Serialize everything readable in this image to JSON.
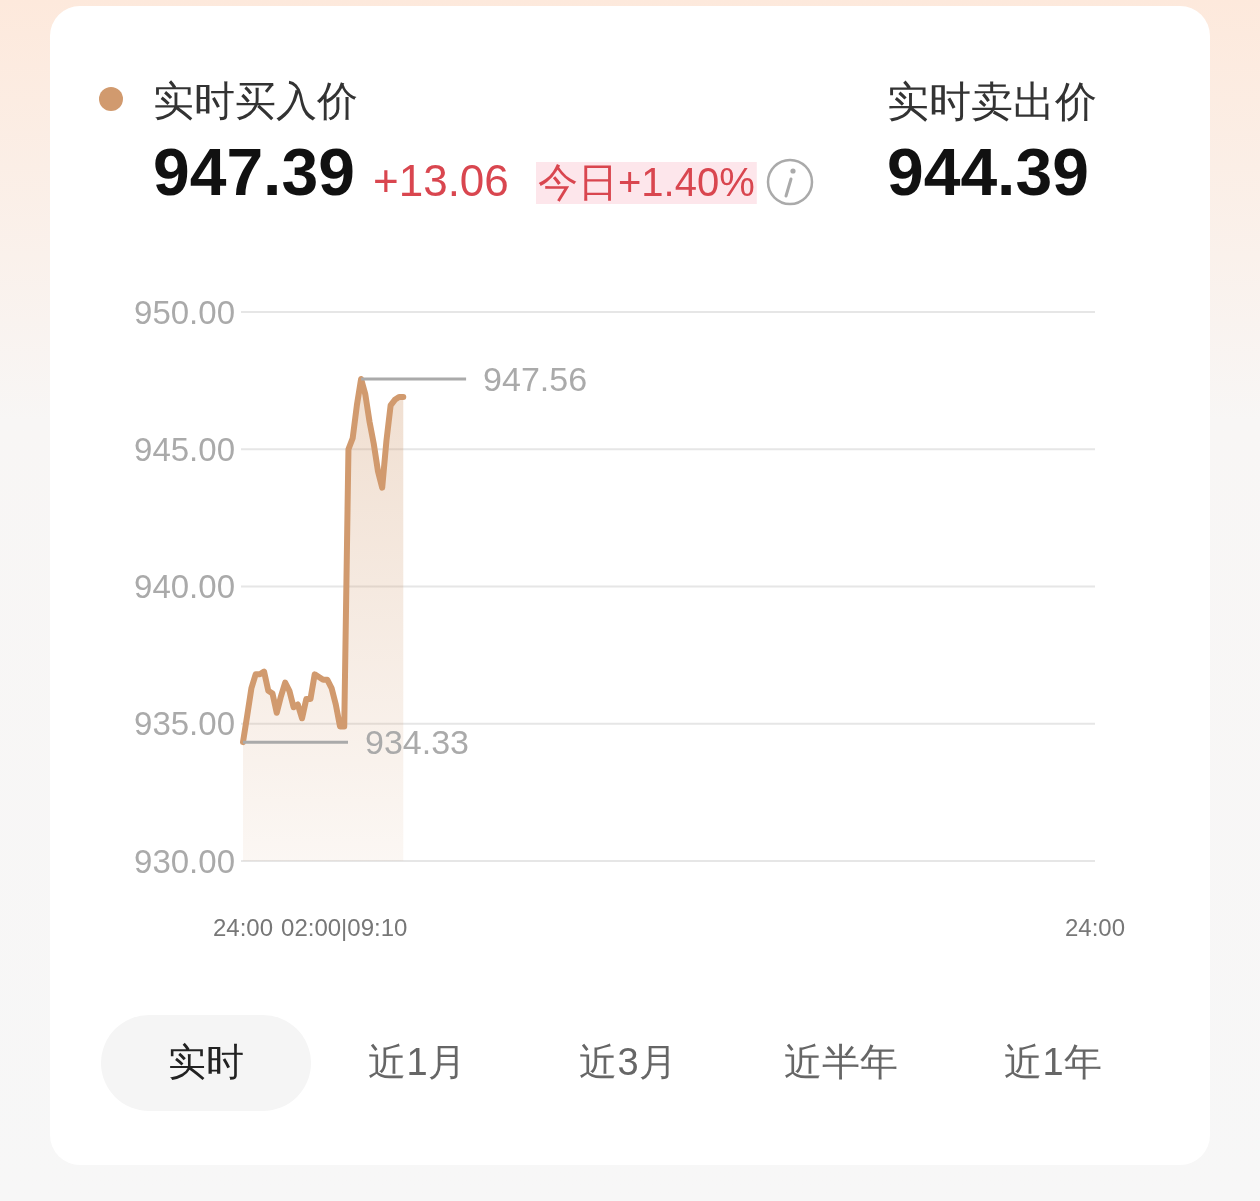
{
  "chart_data": {
    "type": "area",
    "categories": [
      "24:00",
      null,
      null,
      null,
      null,
      null,
      null,
      null,
      null,
      null,
      null,
      null,
      null,
      null,
      null,
      null,
      null,
      null,
      null,
      null,
      null,
      null,
      null,
      null,
      "02:00|09:10",
      null,
      null,
      null,
      null,
      null,
      null,
      null,
      null,
      null,
      null,
      null,
      null,
      null,
      null,
      null,
      null,
      null,
      null,
      null,
      null,
      null,
      null,
      null,
      null,
      null,
      null,
      null,
      null,
      null,
      null,
      null,
      null,
      null,
      null,
      null,
      null,
      null,
      null,
      null,
      null,
      null,
      null,
      null,
      null,
      null,
      null,
      null,
      null,
      null,
      null,
      null,
      null,
      null,
      null,
      null,
      null,
      null,
      null,
      null,
      null,
      null,
      null,
      null,
      null,
      null,
      null,
      null,
      null,
      null,
      null,
      null,
      null,
      null,
      null,
      null,
      null,
      null,
      null,
      null,
      null,
      null,
      null,
      null,
      null,
      null,
      null,
      null,
      null,
      null,
      null,
      null,
      null,
      null,
      null,
      null,
      null,
      null,
      null,
      null,
      null,
      null,
      null,
      null,
      null,
      null,
      null,
      null,
      null,
      null,
      null,
      null,
      null,
      null,
      null,
      null,
      null,
      null,
      null,
      null,
      null,
      null,
      null,
      null,
      null,
      null,
      null,
      null,
      null,
      null,
      null,
      null,
      null,
      null,
      null,
      null,
      null,
      null,
      null,
      null,
      null,
      null,
      null,
      null,
      null,
      null,
      null,
      null,
      null,
      null,
      null,
      null,
      null,
      null,
      null,
      null,
      null,
      null,
      null,
      null,
      null,
      null,
      null,
      null,
      null,
      null,
      null,
      null,
      null,
      null,
      null,
      null,
      null,
      null,
      null,
      null,
      null,
      null,
      "24:00"
    ],
    "series": [
      {
        "name": "实时买入价",
        "color": "#d19a6e",
        "values": [
          934.33,
          935.3,
          936.3,
          936.8,
          936.8,
          936.9,
          936.2,
          936.1,
          935.4,
          936.0,
          936.5,
          936.2,
          935.6,
          935.7,
          935.2,
          935.9,
          935.9,
          936.8,
          936.7,
          936.6,
          936.6,
          936.3,
          935.7,
          934.9,
          934.9,
          945.0,
          945.4,
          946.6,
          947.56,
          947.0,
          946.0,
          945.2,
          944.2,
          943.6,
          945.3,
          946.6,
          946.8,
          946.9,
          946.9,
          null,
          null,
          null,
          null,
          null,
          null,
          null,
          null,
          null,
          null,
          null,
          null,
          null,
          null,
          null,
          null,
          null,
          null,
          null,
          null,
          null,
          null,
          null,
          null,
          null,
          null,
          null,
          null,
          null,
          null,
          null,
          null,
          null,
          null,
          null,
          null,
          null,
          null,
          null,
          null,
          null,
          null,
          null,
          null,
          null,
          null,
          null,
          null,
          null,
          null,
          null,
          null,
          null,
          null,
          null,
          null,
          null,
          null,
          null,
          null,
          null,
          null,
          null,
          null,
          null,
          null,
          null,
          null,
          null,
          null,
          null,
          null,
          null,
          null,
          null,
          null,
          null,
          null,
          null,
          null,
          null,
          null,
          null,
          null,
          null,
          null,
          null,
          null,
          null,
          null,
          null,
          null,
          null,
          null,
          null,
          null,
          null,
          null,
          null,
          null,
          null,
          null,
          null,
          null,
          null,
          null,
          null,
          null,
          null,
          null,
          null,
          null,
          null,
          null,
          null,
          null,
          null,
          null,
          null,
          null,
          null,
          null,
          null,
          null,
          null,
          null,
          null,
          null,
          null,
          null,
          null,
          null,
          null,
          null,
          null,
          null,
          null,
          null,
          null,
          null,
          null,
          null,
          null,
          null,
          null,
          null,
          null,
          null,
          null,
          null,
          null,
          null,
          null,
          null,
          null,
          null,
          null,
          null,
          null,
          null,
          null,
          null,
          null,
          null
        ]
      }
    ],
    "ylim": [
      930,
      950
    ],
    "yticks": [
      {
        "value": 930,
        "label": "930.00"
      },
      {
        "value": 935,
        "label": "935.00"
      },
      {
        "value": 940,
        "label": "940.00"
      },
      {
        "value": 945,
        "label": "945.00"
      },
      {
        "value": 950,
        "label": "950.00"
      }
    ],
    "grid": "y",
    "legend": "top left",
    "annotations": [
      "947.56",
      "934.33",
      "947.39",
      "+13.06",
      "今日+1.40%",
      "实时卖出价",
      "944.39",
      "实时",
      "近1月",
      "近3月",
      "近半年",
      "近1年"
    ]
  }
}
